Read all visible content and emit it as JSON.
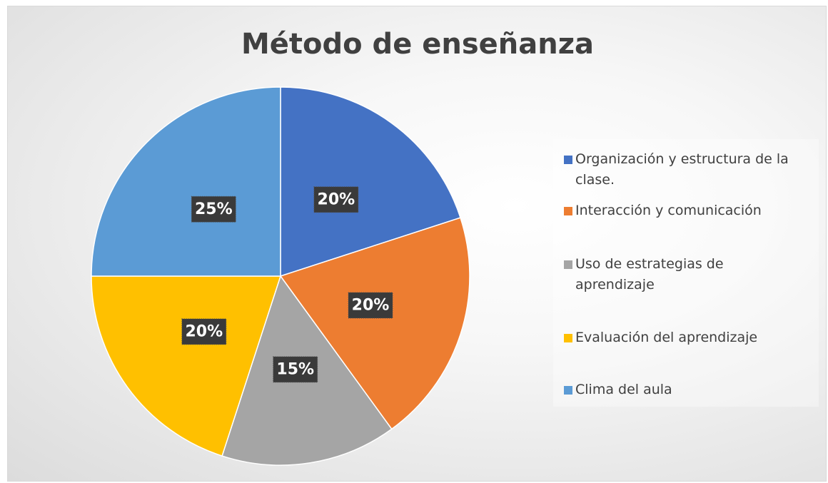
{
  "chart_data": {
    "type": "pie",
    "title": "Método de enseñanza",
    "categories": [
      "Organización y estructura de la clase.",
      "Interacción y comunicación",
      "Uso de estrategias de aprendizaje",
      "Evaluación del aprendizaje",
      "Clima del aula"
    ],
    "values": [
      20,
      20,
      15,
      20,
      25
    ],
    "value_labels": [
      "20%",
      "20%",
      "15%",
      "20%",
      "25%"
    ],
    "colors": [
      "#4472c4",
      "#ed7d31",
      "#a5a5a5",
      "#ffc000",
      "#5b9bd5"
    ],
    "legend": "right"
  }
}
